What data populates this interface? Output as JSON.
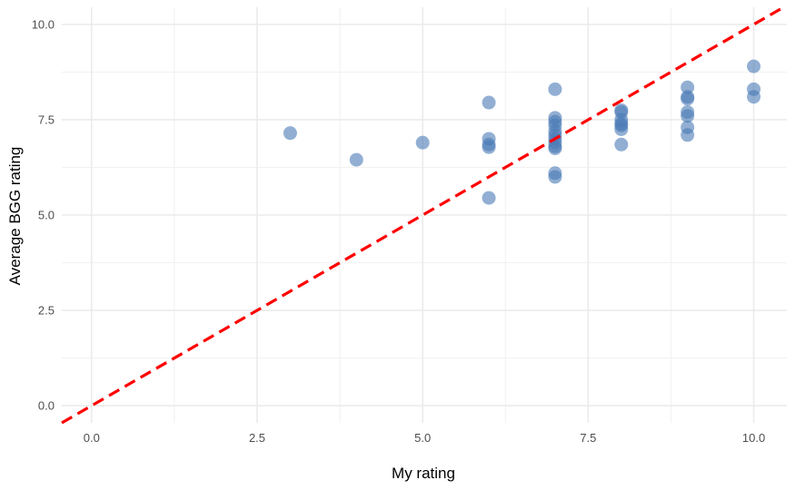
{
  "chart_data": {
    "type": "scatter",
    "xlabel": "My rating",
    "ylabel": "Average BGG rating",
    "xlim": [
      -0.45,
      10.5
    ],
    "ylim": [
      -0.45,
      10.45
    ],
    "x_ticks": [
      0,
      2.5,
      5,
      7.5,
      10
    ],
    "x_tick_labels": [
      "0.0",
      "2.5",
      "5.0",
      "7.5",
      "10.0"
    ],
    "y_ticks": [
      0,
      2.5,
      5,
      7.5,
      10
    ],
    "y_tick_labels": [
      "0.0",
      "2.5",
      "5.0",
      "7.5",
      "10.0"
    ],
    "grid": true,
    "point_color": "#4a7ab5",
    "reference_line": {
      "slope": 1,
      "intercept": 0,
      "color": "#ff0000",
      "style": "dashed"
    },
    "points": [
      {
        "x": 3,
        "y": 7.15
      },
      {
        "x": 4,
        "y": 6.45
      },
      {
        "x": 5,
        "y": 6.9
      },
      {
        "x": 6,
        "y": 7.95
      },
      {
        "x": 6,
        "y": 7.0
      },
      {
        "x": 6,
        "y": 6.85
      },
      {
        "x": 6,
        "y": 6.78
      },
      {
        "x": 6,
        "y": 5.45
      },
      {
        "x": 7,
        "y": 8.3
      },
      {
        "x": 7,
        "y": 7.55
      },
      {
        "x": 7,
        "y": 7.45
      },
      {
        "x": 7,
        "y": 7.35
      },
      {
        "x": 7,
        "y": 7.2
      },
      {
        "x": 7,
        "y": 7.1
      },
      {
        "x": 7,
        "y": 7.0
      },
      {
        "x": 7,
        "y": 6.9
      },
      {
        "x": 7,
        "y": 6.8
      },
      {
        "x": 7,
        "y": 6.75
      },
      {
        "x": 7,
        "y": 6.1
      },
      {
        "x": 7,
        "y": 6.0
      },
      {
        "x": 8,
        "y": 7.75
      },
      {
        "x": 8,
        "y": 7.7
      },
      {
        "x": 8,
        "y": 7.5
      },
      {
        "x": 8,
        "y": 7.4
      },
      {
        "x": 8,
        "y": 7.35
      },
      {
        "x": 8,
        "y": 7.25
      },
      {
        "x": 8,
        "y": 6.85
      },
      {
        "x": 9,
        "y": 8.35
      },
      {
        "x": 9,
        "y": 8.1
      },
      {
        "x": 9,
        "y": 8.05
      },
      {
        "x": 9,
        "y": 7.7
      },
      {
        "x": 9,
        "y": 7.6
      },
      {
        "x": 9,
        "y": 7.3
      },
      {
        "x": 9,
        "y": 7.1
      },
      {
        "x": 10,
        "y": 8.9
      },
      {
        "x": 10,
        "y": 8.3
      },
      {
        "x": 10,
        "y": 8.1
      }
    ]
  }
}
